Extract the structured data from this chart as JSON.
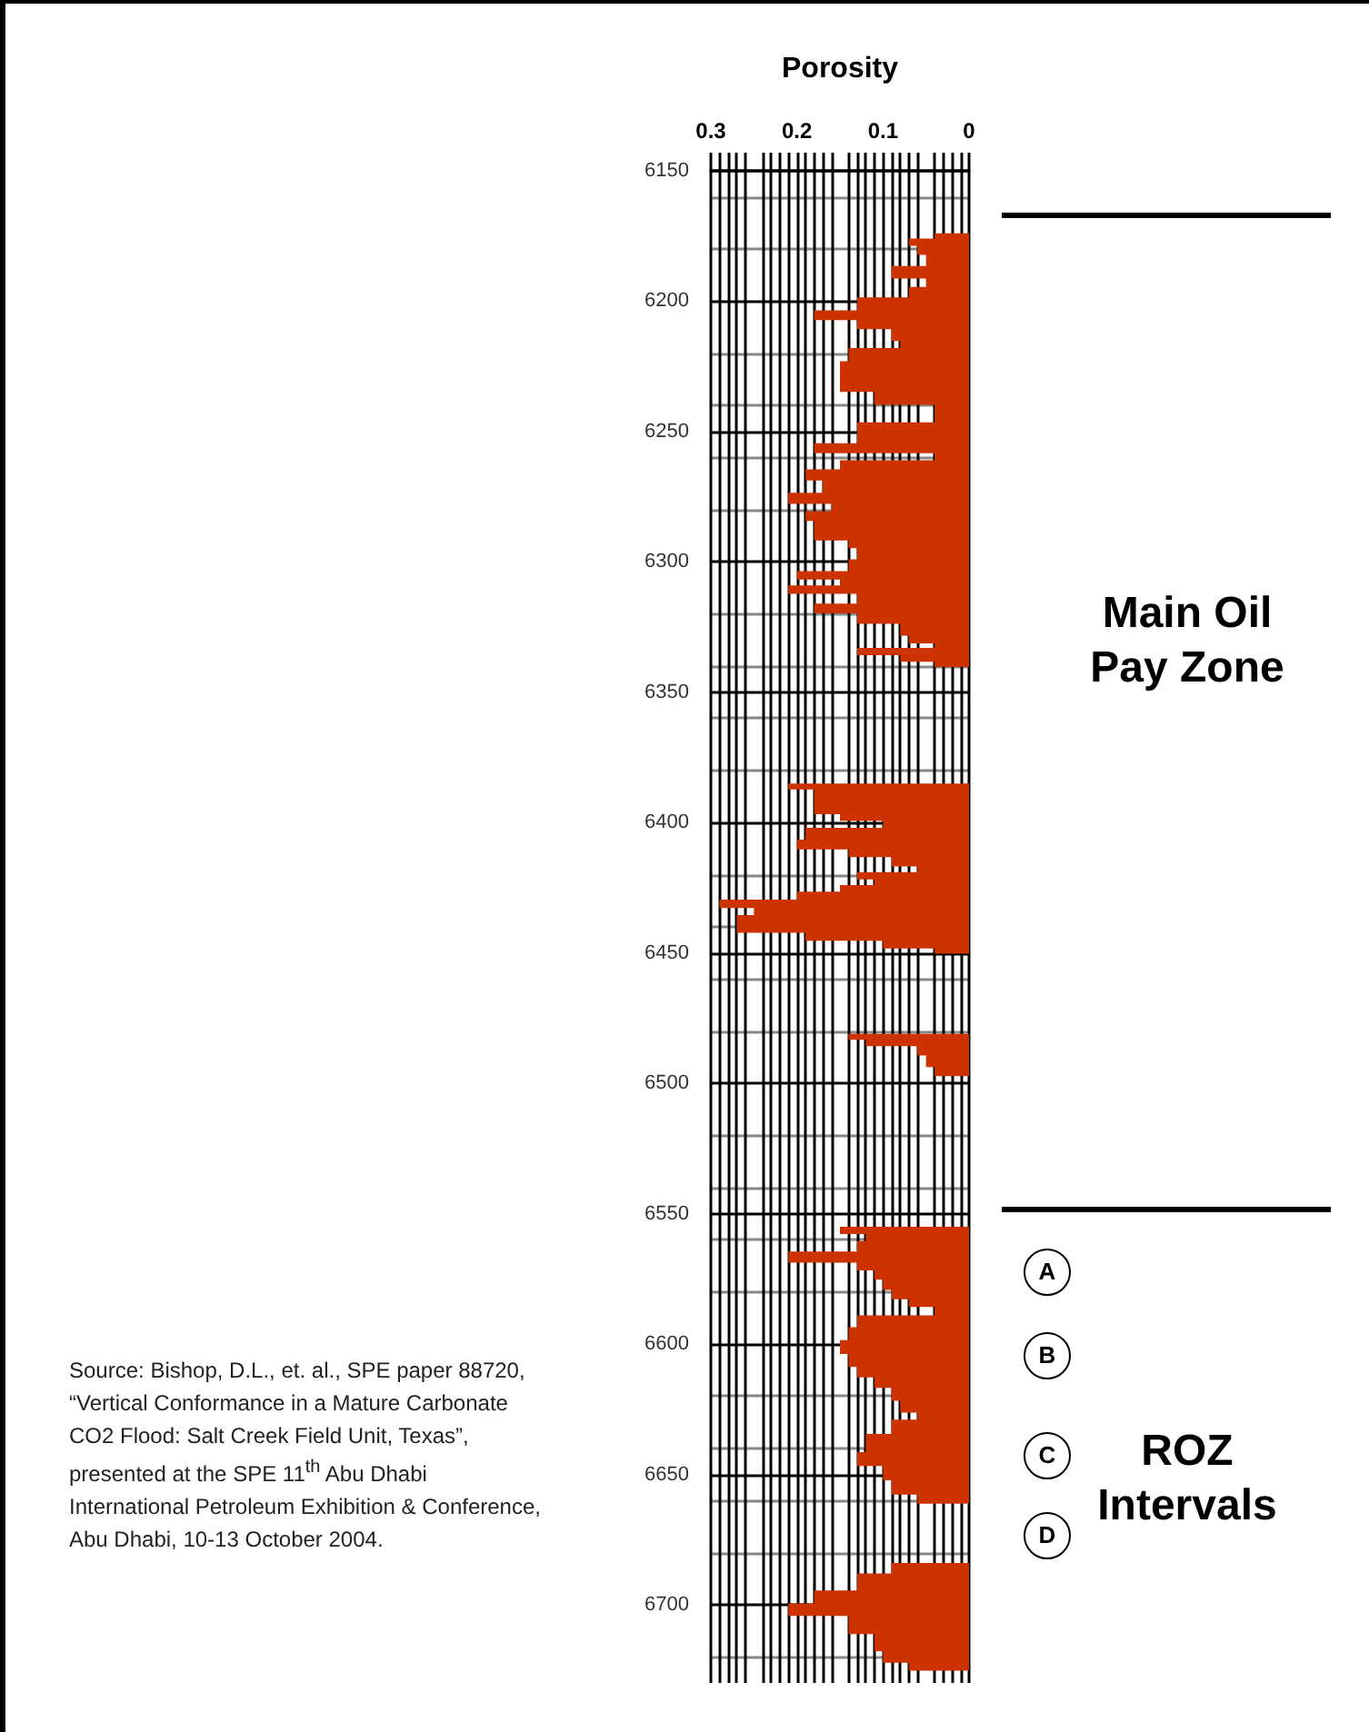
{
  "chart_data": {
    "type": "bar",
    "orientation": "horizontal",
    "xlabel": "Porosity",
    "x": [
      6175,
      6177,
      6180,
      6184,
      6189,
      6193,
      6196,
      6201,
      6206,
      6208,
      6213,
      6217,
      6219,
      6227,
      6233,
      6236,
      6238,
      6241,
      6252,
      6257,
      6259,
      6263,
      6266,
      6271,
      6276,
      6279,
      6282,
      6286,
      6290,
      6293,
      6296,
      6302,
      6305,
      6308,
      6310,
      6314,
      6318,
      6321,
      6326,
      6330,
      6332,
      6334,
      6337,
      6339,
      6386,
      6388,
      6391,
      6395,
      6398,
      6400,
      6404,
      6409,
      6411,
      6415,
      6418,
      6420,
      6423,
      6425,
      6428,
      6431,
      6434,
      6437,
      6441,
      6443,
      6447,
      6449,
      6482,
      6484,
      6487,
      6491,
      6496,
      6556,
      6559,
      6562,
      6567,
      6570,
      6573,
      6577,
      6581,
      6584,
      6587,
      6591,
      6596,
      6601,
      6606,
      6611,
      6614,
      6619,
      6624,
      6628,
      6630,
      6639,
      6644,
      6649,
      6655,
      6660,
      6685,
      6691,
      6698,
      6701,
      6707,
      6715,
      6720,
      6724
    ],
    "values": [
      0.04,
      0.07,
      0.06,
      0.05,
      0.09,
      0.05,
      0.07,
      0.13,
      0.18,
      0.13,
      0.09,
      0.08,
      0.14,
      0.15,
      0.15,
      0.11,
      0.11,
      0.04,
      0.13,
      0.18,
      0.04,
      0.15,
      0.19,
      0.17,
      0.21,
      0.16,
      0.19,
      0.18,
      0.18,
      0.14,
      0.13,
      0.14,
      0.2,
      0.15,
      0.21,
      0.13,
      0.18,
      0.13,
      0.08,
      0.07,
      0.04,
      0.13,
      0.08,
      0.04,
      0.21,
      0.18,
      0.18,
      0.18,
      0.15,
      0.1,
      0.19,
      0.2,
      0.14,
      0.09,
      0.06,
      0.13,
      0.11,
      0.15,
      0.2,
      0.29,
      0.25,
      0.27,
      0.27,
      0.19,
      0.1,
      0.04,
      0.14,
      0.12,
      0.06,
      0.05,
      0.04,
      0.15,
      0.12,
      0.13,
      0.21,
      0.13,
      0.11,
      0.1,
      0.09,
      0.07,
      0.04,
      0.13,
      0.14,
      0.15,
      0.14,
      0.13,
      0.11,
      0.09,
      0.08,
      0.06,
      0.09,
      0.12,
      0.13,
      0.1,
      0.09,
      0.06,
      0.09,
      0.13,
      0.18,
      0.21,
      0.14,
      0.11,
      0.1,
      0.07
    ],
    "color": "#cc3300",
    "xlim": [
      0.3,
      0
    ],
    "xticks": [
      0.3,
      0.2,
      0.1,
      0
    ],
    "ylim": [
      6730,
      6150
    ],
    "yticks": [
      6150,
      6200,
      6250,
      6300,
      6350,
      6400,
      6450,
      6500,
      6550,
      6600,
      6650,
      6700
    ],
    "grid": true,
    "annotations": [
      "Source: Bishop, D.L., et. al., SPE paper 88720, “Vertical Conformance in a Mature Carbonate CO2 Flood: Salt Creek Field Unit, Texas”,  presented at the SPE 11$^{th}$ Abu Dhabi International Petroleum Exhibition & Conference, Abu Dhabi, 10-13 October 2004.",
      "Main Oil\nPay Zone",
      "ROZ\nIntervals",
      "A",
      "B",
      "C",
      "D"
    ]
  }
}
